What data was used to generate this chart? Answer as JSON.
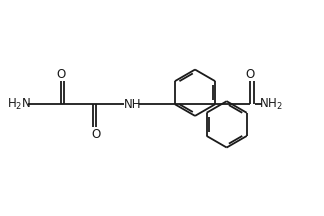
{
  "bg_color": "#ffffff",
  "line_color": "#1a1a1a",
  "line_width": 1.3,
  "font_size": 8.5,
  "figsize": [
    3.24,
    2.16
  ],
  "dpi": 100,
  "xlim": [
    0,
    10
  ],
  "ylim": [
    0,
    6.67
  ]
}
